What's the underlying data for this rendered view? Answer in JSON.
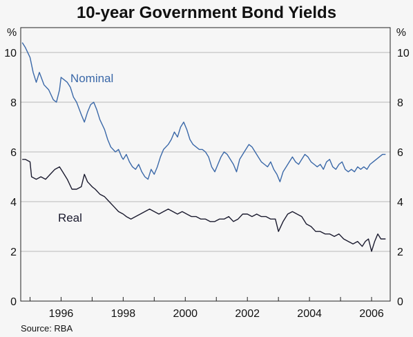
{
  "chart_data": {
    "type": "line",
    "title": "10-year Government Bond Yields",
    "y_unit_left": "%",
    "y_unit_right": "%",
    "source": "Source: RBA",
    "xlim": [
      1994.7,
      2006.6
    ],
    "ylim": [
      0,
      11
    ],
    "grid": true,
    "x_ticks": [
      1996,
      1998,
      2000,
      2002,
      2004,
      2006
    ],
    "x_tick_labels": [
      "1996",
      "1998",
      "2000",
      "2002",
      "2004",
      "2006"
    ],
    "y_ticks": [
      0,
      2,
      4,
      6,
      8,
      10
    ],
    "y_tick_labels": [
      "0",
      "2",
      "4",
      "6",
      "8",
      "10"
    ],
    "colors": {
      "nominal": "#3a68a8",
      "real": "#1a1a2e",
      "grid": "#b8b8b8",
      "axis": "#222222"
    },
    "series": [
      {
        "name": "Nominal",
        "key": "nominal",
        "label_at": [
          1996.3,
          8.8
        ],
        "x": [
          1994.75,
          1994.85,
          1995.0,
          1995.1,
          1995.2,
          1995.3,
          1995.45,
          1995.6,
          1995.75,
          1995.85,
          1995.95,
          1996.0,
          1996.1,
          1996.2,
          1996.3,
          1996.4,
          1996.5,
          1996.65,
          1996.75,
          1996.85,
          1996.95,
          1997.05,
          1997.15,
          1997.25,
          1997.4,
          1997.5,
          1997.6,
          1997.75,
          1997.85,
          1997.95,
          1998.0,
          1998.1,
          1998.2,
          1998.3,
          1998.4,
          1998.5,
          1998.6,
          1998.7,
          1998.8,
          1998.9,
          1999.0,
          1999.1,
          1999.2,
          1999.3,
          1999.45,
          1999.55,
          1999.65,
          1999.75,
          1999.85,
          1999.95,
          2000.05,
          2000.15,
          2000.25,
          2000.35,
          2000.45,
          2000.55,
          2000.65,
          2000.75,
          2000.85,
          2000.95,
          2001.05,
          2001.15,
          2001.25,
          2001.35,
          2001.45,
          2001.55,
          2001.65,
          2001.75,
          2001.85,
          2001.95,
          2002.05,
          2002.15,
          2002.25,
          2002.35,
          2002.45,
          2002.55,
          2002.65,
          2002.75,
          2002.85,
          2002.95,
          2003.05,
          2003.15,
          2003.25,
          2003.35,
          2003.45,
          2003.55,
          2003.65,
          2003.75,
          2003.85,
          2003.95,
          2004.05,
          2004.15,
          2004.25,
          2004.35,
          2004.45,
          2004.55,
          2004.65,
          2004.75,
          2004.85,
          2004.95,
          2005.05,
          2005.15,
          2005.25,
          2005.35,
          2005.45,
          2005.55,
          2005.65,
          2005.75,
          2005.85,
          2005.95,
          2006.05,
          2006.15,
          2006.25,
          2006.35,
          2006.45
        ],
        "values": [
          10.4,
          10.2,
          9.8,
          9.2,
          8.8,
          9.2,
          8.7,
          8.5,
          8.1,
          8.0,
          8.5,
          9.0,
          8.9,
          8.8,
          8.6,
          8.2,
          8.0,
          7.5,
          7.2,
          7.6,
          7.9,
          8.0,
          7.7,
          7.3,
          6.9,
          6.5,
          6.2,
          6.0,
          6.1,
          5.8,
          5.7,
          5.9,
          5.6,
          5.4,
          5.3,
          5.5,
          5.2,
          5.0,
          4.9,
          5.3,
          5.1,
          5.4,
          5.8,
          6.1,
          6.3,
          6.5,
          6.8,
          6.6,
          7.0,
          7.2,
          6.9,
          6.5,
          6.3,
          6.2,
          6.1,
          6.1,
          6.0,
          5.8,
          5.4,
          5.2,
          5.5,
          5.8,
          6.0,
          5.9,
          5.7,
          5.5,
          5.2,
          5.7,
          5.9,
          6.1,
          6.3,
          6.2,
          6.0,
          5.8,
          5.6,
          5.5,
          5.4,
          5.6,
          5.3,
          5.1,
          4.8,
          5.2,
          5.4,
          5.6,
          5.8,
          5.6,
          5.5,
          5.7,
          5.9,
          5.8,
          5.6,
          5.5,
          5.4,
          5.5,
          5.3,
          5.6,
          5.7,
          5.4,
          5.3,
          5.5,
          5.6,
          5.3,
          5.2,
          5.3,
          5.2,
          5.4,
          5.3,
          5.4,
          5.3,
          5.5,
          5.6,
          5.7,
          5.8,
          5.9,
          5.9
        ]
      },
      {
        "name": "Real",
        "key": "real",
        "label_at": [
          1995.9,
          3.2
        ],
        "x": [
          1994.75,
          1994.85,
          1995.0,
          1995.05,
          1995.2,
          1995.35,
          1995.5,
          1995.65,
          1995.8,
          1995.95,
          1996.05,
          1996.2,
          1996.35,
          1996.5,
          1996.65,
          1996.75,
          1996.85,
          1997.0,
          1997.1,
          1997.25,
          1997.4,
          1997.55,
          1997.7,
          1997.85,
          1998.0,
          1998.1,
          1998.25,
          1998.4,
          1998.55,
          1998.7,
          1998.85,
          1999.0,
          1999.15,
          1999.3,
          1999.45,
          1999.6,
          1999.75,
          1999.9,
          2000.05,
          2000.2,
          2000.35,
          2000.5,
          2000.65,
          2000.8,
          2000.95,
          2001.1,
          2001.25,
          2001.4,
          2001.55,
          2001.7,
          2001.85,
          2002.0,
          2002.15,
          2002.3,
          2002.45,
          2002.6,
          2002.75,
          2002.9,
          2003.0,
          2003.15,
          2003.3,
          2003.45,
          2003.6,
          2003.75,
          2003.9,
          2004.05,
          2004.2,
          2004.35,
          2004.5,
          2004.65,
          2004.8,
          2004.95,
          2005.1,
          2005.25,
          2005.4,
          2005.55,
          2005.7,
          2005.8,
          2005.9,
          2006.0,
          2006.1,
          2006.2,
          2006.3,
          2006.45
        ],
        "values": [
          5.7,
          5.7,
          5.6,
          5.0,
          4.9,
          5.0,
          4.9,
          5.1,
          5.3,
          5.4,
          5.2,
          4.9,
          4.5,
          4.5,
          4.6,
          5.1,
          4.8,
          4.6,
          4.5,
          4.3,
          4.2,
          4.0,
          3.8,
          3.6,
          3.5,
          3.4,
          3.3,
          3.4,
          3.5,
          3.6,
          3.7,
          3.6,
          3.5,
          3.6,
          3.7,
          3.6,
          3.5,
          3.6,
          3.5,
          3.4,
          3.4,
          3.3,
          3.3,
          3.2,
          3.2,
          3.3,
          3.3,
          3.4,
          3.2,
          3.3,
          3.5,
          3.5,
          3.4,
          3.5,
          3.4,
          3.4,
          3.3,
          3.3,
          2.8,
          3.2,
          3.5,
          3.6,
          3.5,
          3.4,
          3.1,
          3.0,
          2.8,
          2.8,
          2.7,
          2.7,
          2.6,
          2.7,
          2.5,
          2.4,
          2.3,
          2.4,
          2.2,
          2.4,
          2.5,
          2.0,
          2.4,
          2.7,
          2.5,
          2.5
        ]
      }
    ]
  }
}
